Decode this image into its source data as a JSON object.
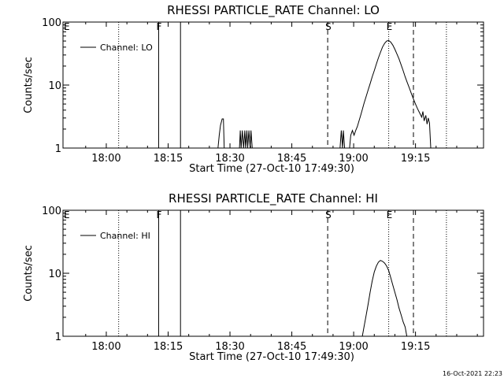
{
  "timestamp": "16-Oct-2021 22:23",
  "chart_data": [
    {
      "type": "line",
      "title": "RHESSI PARTICLE_RATE Channel: LO",
      "xlabel": "Start Time (27-Oct-10 17:49:30)",
      "ylabel": "Counts/sec",
      "yscale": "log",
      "ylim": [
        1,
        100
      ],
      "xlim_minutes_after_start": [
        0,
        102
      ],
      "x_ticks": [
        {
          "label": "18:00",
          "minutes": 10.5
        },
        {
          "label": "18:15",
          "minutes": 25.5
        },
        {
          "label": "18:30",
          "minutes": 40.5
        },
        {
          "label": "18:45",
          "minutes": 55.5
        },
        {
          "label": "19:00",
          "minutes": 70.5
        },
        {
          "label": "19:15",
          "minutes": 85.5
        }
      ],
      "y_ticks": [
        {
          "label": "1",
          "value": 1
        },
        {
          "label": "10",
          "value": 10
        },
        {
          "label": "100",
          "value": 100
        }
      ],
      "legend": {
        "position": "top-left",
        "entries": [
          "Channel: LO"
        ]
      },
      "markers": [
        {
          "label": "E",
          "minutes": 0,
          "style": "none"
        },
        {
          "label": "",
          "minutes": 13.5,
          "style": "dotted"
        },
        {
          "label": "F",
          "minutes": 23.2,
          "style": "solid"
        },
        {
          "label": "",
          "minutes": 28.5,
          "style": "solid"
        },
        {
          "label": "S",
          "minutes": 64.2,
          "style": "dashed"
        },
        {
          "label": "E",
          "minutes": 79.0,
          "style": "dotted"
        },
        {
          "label": "",
          "minutes": 85.0,
          "style": "dashed"
        },
        {
          "label": "",
          "minutes": 93.0,
          "style": "dotted"
        }
      ],
      "series": [
        {
          "name": "Channel: LO",
          "segments": [
            [
              [
                37.6,
                1
              ],
              [
                37.9,
                1.6
              ],
              [
                38.2,
                2.3
              ],
              [
                38.6,
                2.9
              ],
              [
                38.9,
                2.9
              ],
              [
                39.1,
                1
              ]
            ],
            [
              [
                42.8,
                1
              ],
              [
                43.0,
                1.9
              ],
              [
                43.2,
                1
              ],
              [
                43.5,
                1.9
              ],
              [
                43.8,
                1
              ],
              [
                44.1,
                1.9
              ],
              [
                44.3,
                1
              ],
              [
                44.6,
                1.9
              ],
              [
                44.8,
                1
              ],
              [
                45.1,
                1.9
              ],
              [
                45.4,
                1
              ],
              [
                45.6,
                1.9
              ],
              [
                45.9,
                1
              ]
            ],
            [
              [
                67.2,
                1
              ],
              [
                67.5,
                1.9
              ],
              [
                67.8,
                1
              ],
              [
                68.0,
                1.9
              ],
              [
                68.3,
                1
              ]
            ],
            [
              [
                69.5,
                1
              ],
              [
                69.8,
                1.6
              ],
              [
                70.2,
                1.9
              ],
              [
                70.6,
                1.6
              ],
              [
                71.0,
                1.9
              ],
              [
                71.4,
                2.2
              ],
              [
                71.8,
                2.7
              ],
              [
                72.2,
                3.3
              ],
              [
                72.6,
                4.1
              ],
              [
                73.0,
                5.1
              ],
              [
                73.5,
                6.5
              ],
              [
                74.0,
                8.3
              ],
              [
                74.5,
                10.5
              ],
              [
                75.0,
                13.5
              ],
              [
                75.5,
                17
              ],
              [
                76.0,
                21.5
              ],
              [
                76.5,
                27
              ],
              [
                77.0,
                33
              ],
              [
                77.5,
                40
              ],
              [
                78.0,
                46
              ],
              [
                78.5,
                50
              ],
              [
                79.0,
                51
              ],
              [
                79.5,
                48
              ],
              [
                80.0,
                43
              ],
              [
                80.5,
                37
              ],
              [
                81.0,
                31
              ],
              [
                81.5,
                26
              ],
              [
                82.0,
                21
              ],
              [
                82.5,
                17
              ],
              [
                83.0,
                13.5
              ],
              [
                83.5,
                11
              ],
              [
                84.0,
                9
              ],
              [
                84.5,
                7.3
              ],
              [
                85.0,
                6
              ],
              [
                85.5,
                5
              ],
              [
                86.0,
                4.2
              ],
              [
                86.5,
                3.6
              ],
              [
                87.0,
                3.1
              ],
              [
                87.3,
                3.8
              ],
              [
                87.6,
                2.7
              ],
              [
                88.0,
                3.3
              ],
              [
                88.3,
                2.4
              ],
              [
                88.6,
                3.0
              ],
              [
                88.9,
                2.5
              ],
              [
                89.2,
                1
              ]
            ]
          ]
        }
      ]
    },
    {
      "type": "line",
      "title": "RHESSI PARTICLE_RATE Channel: HI",
      "xlabel": "Start Time (27-Oct-10 17:49:30)",
      "ylabel": "Counts/sec",
      "yscale": "log",
      "ylim": [
        1,
        100
      ],
      "xlim_minutes_after_start": [
        0,
        102
      ],
      "x_ticks": [
        {
          "label": "18:00",
          "minutes": 10.5
        },
        {
          "label": "18:15",
          "minutes": 25.5
        },
        {
          "label": "18:30",
          "minutes": 40.5
        },
        {
          "label": "18:45",
          "minutes": 55.5
        },
        {
          "label": "19:00",
          "minutes": 70.5
        },
        {
          "label": "19:15",
          "minutes": 85.5
        }
      ],
      "y_ticks": [
        {
          "label": "1",
          "value": 1
        },
        {
          "label": "10",
          "value": 10
        },
        {
          "label": "100",
          "value": 100
        }
      ],
      "legend": {
        "position": "top-left",
        "entries": [
          "Channel: HI"
        ]
      },
      "markers": [
        {
          "label": "E",
          "minutes": 0,
          "style": "none"
        },
        {
          "label": "",
          "minutes": 13.5,
          "style": "dotted"
        },
        {
          "label": "F",
          "minutes": 23.2,
          "style": "solid"
        },
        {
          "label": "",
          "minutes": 28.5,
          "style": "solid"
        },
        {
          "label": "S",
          "minutes": 64.2,
          "style": "dashed"
        },
        {
          "label": "E",
          "minutes": 79.0,
          "style": "dotted"
        },
        {
          "label": "",
          "minutes": 85.0,
          "style": "dashed"
        },
        {
          "label": "",
          "minutes": 93.0,
          "style": "dotted"
        }
      ],
      "series": [
        {
          "name": "Channel: HI",
          "segments": [
            [
              [
                72.6,
                1
              ],
              [
                73.0,
                1.4
              ],
              [
                73.5,
                2.1
              ],
              [
                74.0,
                3.2
              ],
              [
                74.5,
                5
              ],
              [
                75.0,
                7.5
              ],
              [
                75.5,
                10.5
              ],
              [
                76.0,
                13
              ],
              [
                76.5,
                15
              ],
              [
                77.0,
                16
              ],
              [
                77.5,
                15.5
              ],
              [
                78.0,
                14.5
              ],
              [
                78.5,
                13
              ],
              [
                79.0,
                11
              ],
              [
                79.5,
                8.5
              ],
              [
                80.0,
                6.5
              ],
              [
                80.5,
                5
              ],
              [
                81.0,
                3.8
              ],
              [
                81.5,
                2.8
              ],
              [
                82.0,
                2.2
              ],
              [
                82.5,
                1.7
              ],
              [
                83.0,
                1.4
              ],
              [
                83.4,
                1
              ]
            ]
          ]
        }
      ]
    }
  ]
}
